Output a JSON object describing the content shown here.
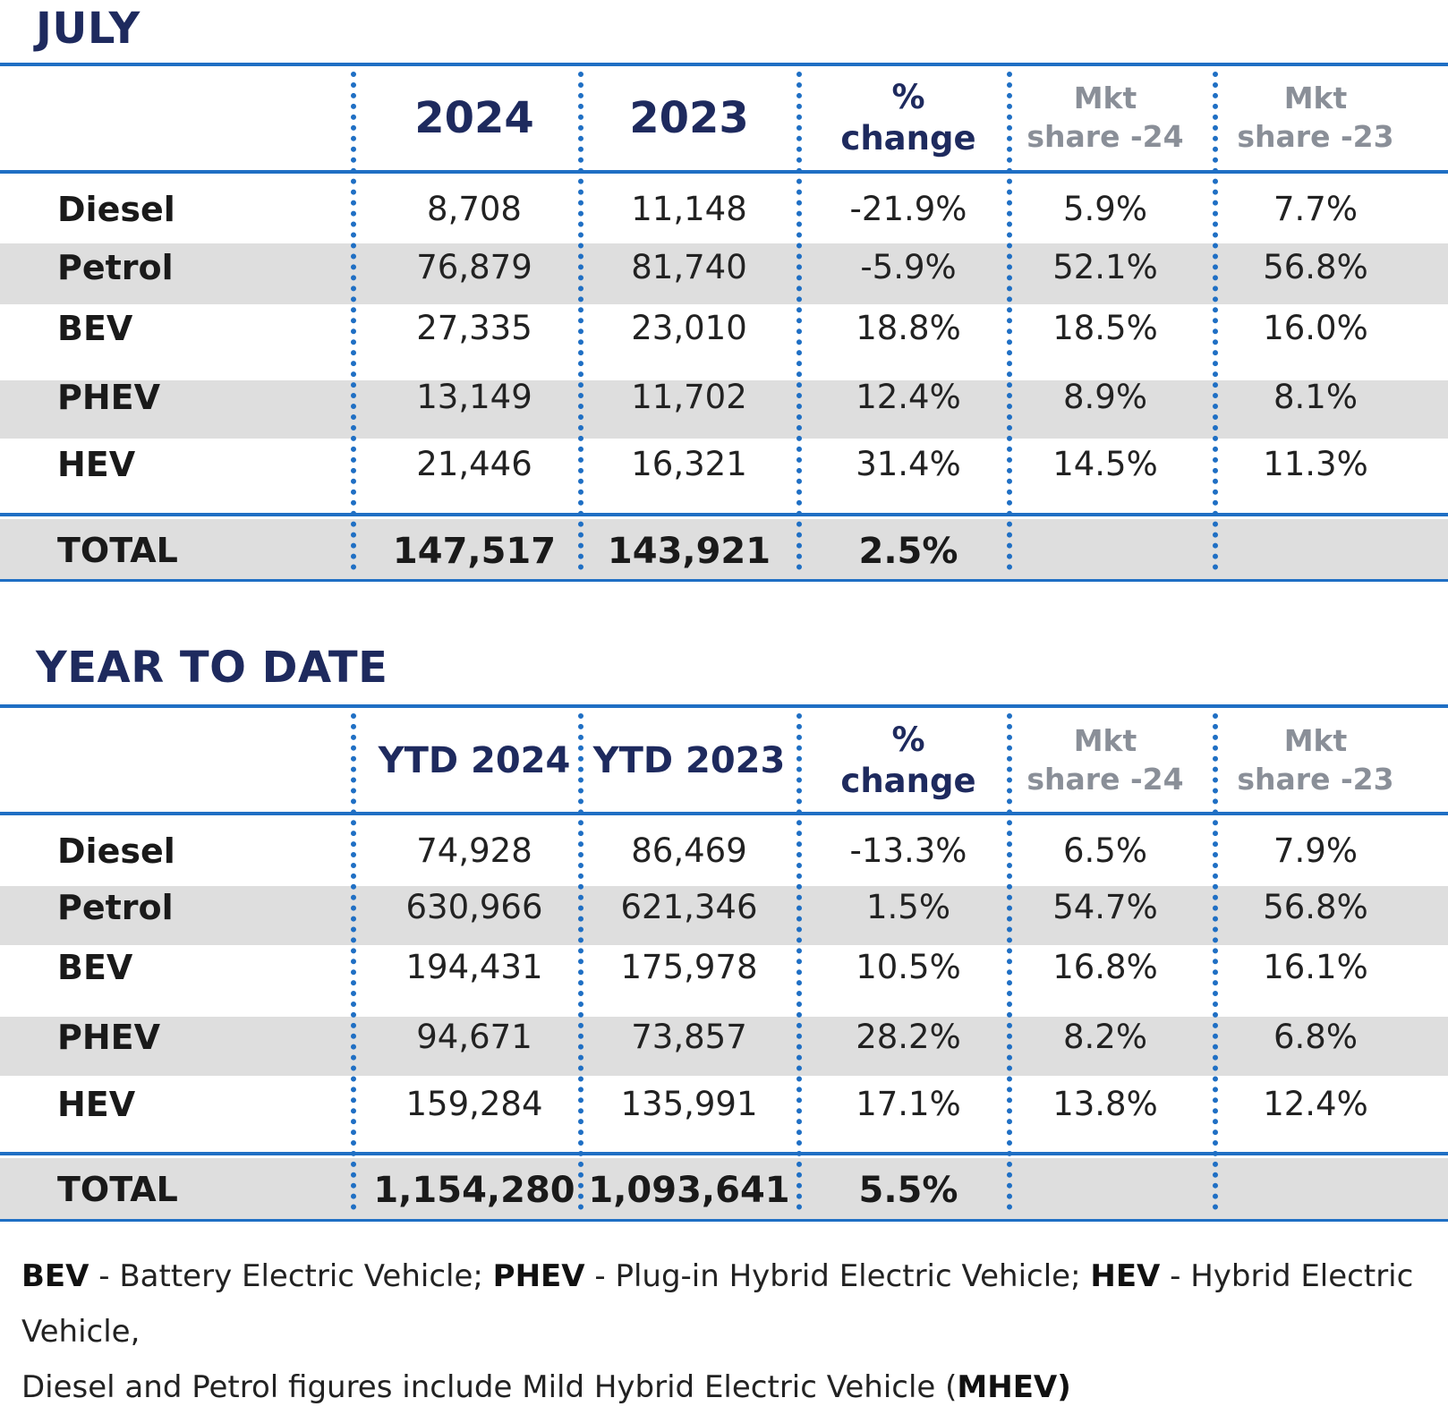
{
  "tables": [
    {
      "title": "JULY",
      "headers": [
        "2024",
        "2023",
        "% change",
        "Mkt share -24",
        "Mkt share -23"
      ],
      "header_lines": [
        [
          "2024"
        ],
        [
          "2023"
        ],
        [
          "%",
          "change"
        ],
        [
          "Mkt",
          "share -24"
        ],
        [
          "Mkt",
          "share -23"
        ]
      ],
      "rows": [
        {
          "label": "Diesel",
          "values": [
            "8,708",
            "11,148",
            "-21.9%",
            "5.9%",
            "7.7%"
          ]
        },
        {
          "label": "Petrol",
          "values": [
            "76,879",
            "81,740",
            "-5.9%",
            "52.1%",
            "56.8%"
          ]
        },
        {
          "label": "BEV",
          "values": [
            "27,335",
            "23,010",
            "18.8%",
            "18.5%",
            "16.0%"
          ]
        },
        {
          "label": "PHEV",
          "values": [
            "13,149",
            "11,702",
            "12.4%",
            "8.9%",
            "8.1%"
          ]
        },
        {
          "label": "HEV",
          "values": [
            "21,446",
            "16,321",
            "31.4%",
            "14.5%",
            "11.3%"
          ]
        }
      ],
      "total": {
        "label": "TOTAL",
        "values": [
          "147,517",
          "143,921",
          "2.5%",
          "",
          ""
        ]
      }
    },
    {
      "title": "YEAR TO DATE",
      "headers": [
        "YTD 2024",
        "YTD 2023",
        "% change",
        "Mkt share -24",
        "Mkt share -23"
      ],
      "header_lines": [
        [
          "YTD 2024"
        ],
        [
          "YTD 2023"
        ],
        [
          "%",
          "change"
        ],
        [
          "Mkt",
          "share -24"
        ],
        [
          "Mkt",
          "share -23"
        ]
      ],
      "rows": [
        {
          "label": "Diesel",
          "values": [
            "74,928",
            "86,469",
            "-13.3%",
            "6.5%",
            "7.9%"
          ]
        },
        {
          "label": "Petrol",
          "values": [
            "630,966",
            "621,346",
            "1.5%",
            "54.7%",
            "56.8%"
          ]
        },
        {
          "label": "BEV",
          "values": [
            "194,431",
            "175,978",
            "10.5%",
            "16.8%",
            "16.1%"
          ]
        },
        {
          "label": "PHEV",
          "values": [
            "94,671",
            "73,857",
            "28.2%",
            "8.2%",
            "6.8%"
          ]
        },
        {
          "label": "HEV",
          "values": [
            "159,284",
            "135,991",
            "17.1%",
            "13.8%",
            "12.4%"
          ]
        }
      ],
      "total": {
        "label": "TOTAL",
        "values": [
          "1,154,280",
          "1,093,641",
          "5.5%",
          "",
          ""
        ]
      }
    }
  ],
  "footnote": {
    "line1": [
      {
        "text": "BEV",
        "bold": true
      },
      {
        "text": " - Battery Electric Vehicle; ",
        "bold": false
      },
      {
        "text": "PHEV",
        "bold": true
      },
      {
        "text": " - Plug-in Hybrid Electric Vehicle; ",
        "bold": false
      },
      {
        "text": "HEV",
        "bold": true
      },
      {
        "text": " - Hybrid Electric Vehicle,",
        "bold": false
      }
    ],
    "line2": [
      {
        "text": "Diesel and Petrol figures include Mild Hybrid Electric Vehicle (",
        "bold": false
      },
      {
        "text": "MHEV)",
        "bold": true
      }
    ]
  },
  "colors": {
    "accent": "#1f6fc4",
    "title": "#1e2a5e",
    "band": "#dedede",
    "muted_header": "#8a8f98"
  }
}
